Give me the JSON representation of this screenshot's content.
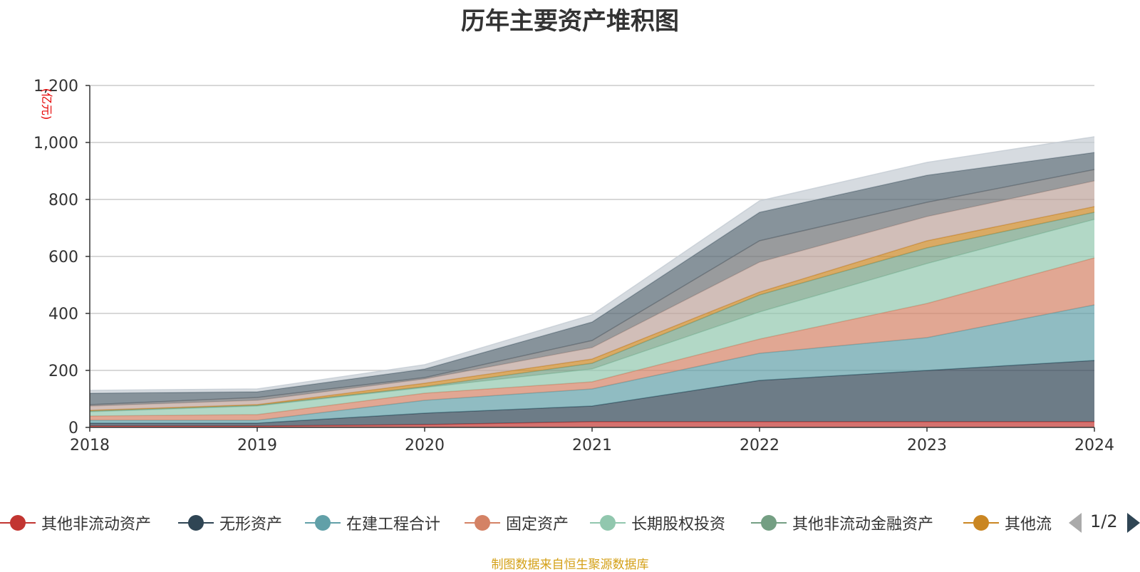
{
  "title": "历年主要资产堆积图",
  "source": "制图数据来自恒生聚源数据库",
  "pager": {
    "text": "1/2"
  },
  "chart_data": {
    "type": "area",
    "stacked": true,
    "x": [
      "2018",
      "2019",
      "2020",
      "2021",
      "2022",
      "2023",
      "2024"
    ],
    "ylabel": "(亿元)",
    "ylim": [
      0,
      1200
    ],
    "yticks": [
      0,
      200,
      400,
      600,
      800,
      1000,
      1200
    ],
    "ytick_labels": [
      "0",
      "200",
      "400",
      "600",
      "800",
      "1,000",
      "1,200"
    ],
    "grid": true,
    "legend_position": "bottom",
    "series": [
      {
        "name": "其他非流动资产",
        "color": "#c23531",
        "values": [
          5,
          5,
          10,
          20,
          20,
          20,
          20
        ]
      },
      {
        "name": "无形资产",
        "color": "#2f4554",
        "values": [
          10,
          10,
          40,
          55,
          145,
          180,
          215
        ]
      },
      {
        "name": "在建工程合计",
        "color": "#61a0a8",
        "values": [
          10,
          10,
          45,
          60,
          95,
          115,
          195
        ]
      },
      {
        "name": "固定资产",
        "color": "#d48265",
        "values": [
          15,
          20,
          25,
          25,
          50,
          120,
          165
        ]
      },
      {
        "name": "长期股权投资",
        "color": "#91c7ae",
        "values": [
          15,
          30,
          20,
          45,
          95,
          140,
          135
        ]
      },
      {
        "name": "其他非流动金融资产",
        "color": "#749f83",
        "values": [
          3,
          3,
          3,
          20,
          60,
          55,
          25
        ]
      },
      {
        "name": "其他流动资产",
        "color": "#ca8622",
        "values": [
          2,
          2,
          12,
          15,
          10,
          25,
          20
        ]
      },
      {
        "values": [
          15,
          15,
          15,
          40,
          105,
          85,
          90
        ],
        "color": "#bda29a"
      },
      {
        "values": [
          5,
          10,
          5,
          25,
          75,
          50,
          40
        ],
        "color": "#6e7074"
      },
      {
        "values": [
          40,
          20,
          30,
          65,
          100,
          95,
          60
        ],
        "color": "#546570"
      },
      {
        "values": [
          10,
          10,
          15,
          25,
          40,
          45,
          55
        ],
        "color": "#c4ccd3"
      }
    ],
    "legend_visible": [
      "其他非流动资产",
      "无形资产",
      "在建工程合计",
      "固定资产",
      "长期股权投资",
      "其他非流动金融资产",
      "其他流"
    ]
  }
}
